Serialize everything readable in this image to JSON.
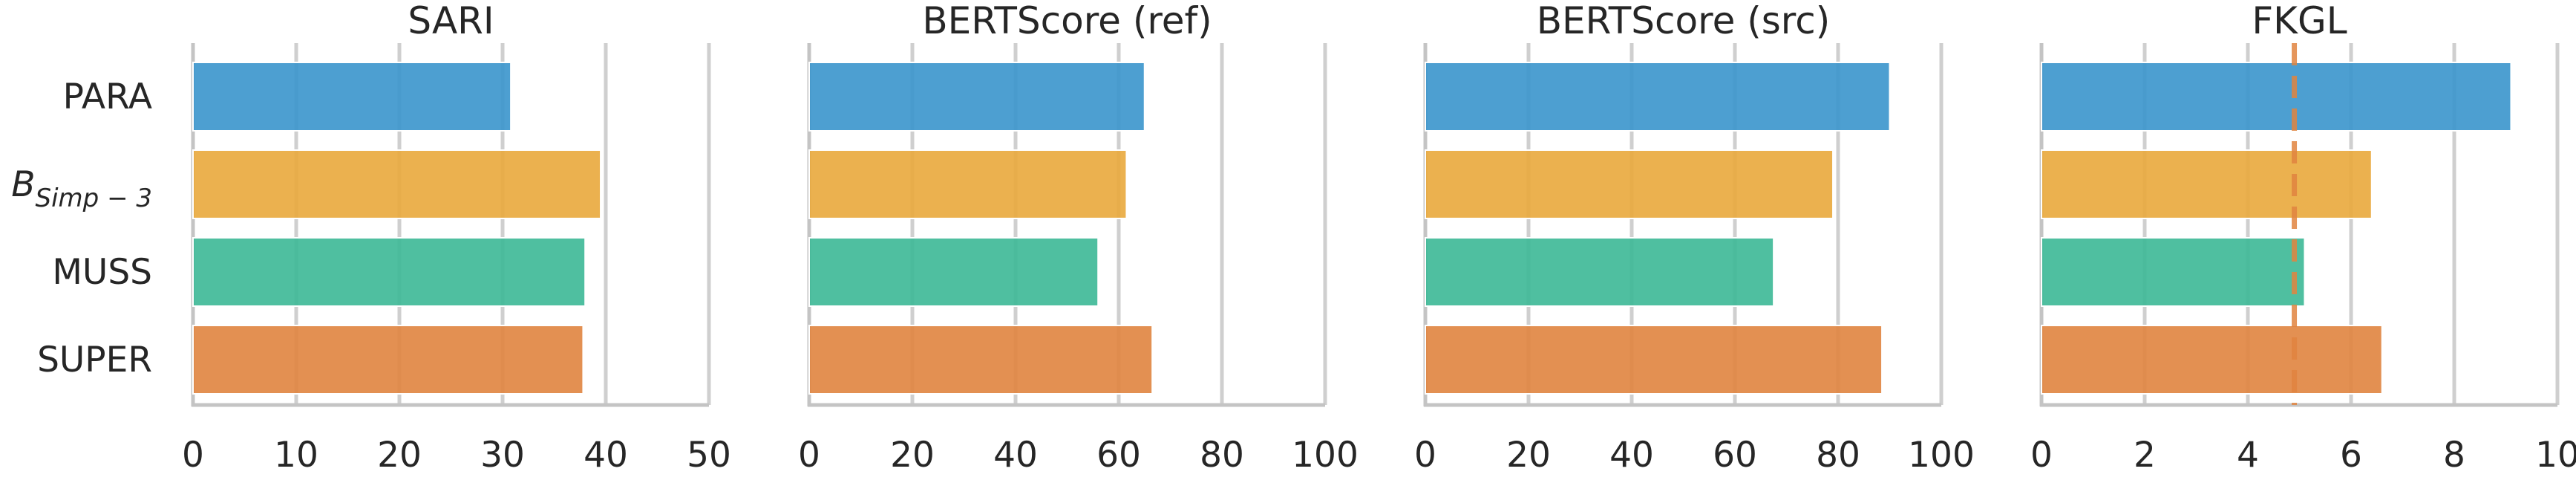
{
  "chart_data": {
    "type": "bar",
    "orientation": "horizontal",
    "categories": [
      {
        "label": "PARA",
        "color": "#3a95cc"
      },
      {
        "label": "B",
        "sub": "Simp − 3",
        "italic": true,
        "color": "#e9a93c"
      },
      {
        "label": "MUSS",
        "color": "#3cb896"
      },
      {
        "label": "SUPER",
        "color": "#e0843f"
      }
    ],
    "grid": true,
    "panels": [
      {
        "title": "SARI",
        "xlim": [
          0,
          50
        ],
        "ticks": [
          0,
          10,
          20,
          30,
          40,
          50
        ],
        "values": [
          30.8,
          39.5,
          38.0,
          37.8
        ]
      },
      {
        "title": "BERTScore (ref)",
        "xlim": [
          0,
          100
        ],
        "ticks": [
          0,
          20,
          40,
          60,
          80,
          100
        ],
        "values": [
          65.0,
          61.5,
          56.0,
          66.5
        ]
      },
      {
        "title": "BERTScore (src)",
        "xlim": [
          0,
          100
        ],
        "ticks": [
          0,
          20,
          40,
          60,
          80,
          100
        ],
        "values": [
          90.0,
          79.0,
          67.5,
          88.5
        ]
      },
      {
        "title": "FKGL",
        "xlim": [
          0,
          10
        ],
        "ticks": [
          0,
          2,
          4,
          6,
          8,
          10
        ],
        "values": [
          9.1,
          6.4,
          5.1,
          6.6
        ],
        "reference_line": {
          "x": 4.9,
          "color": "#e0843f",
          "style": "dashed"
        }
      }
    ]
  }
}
